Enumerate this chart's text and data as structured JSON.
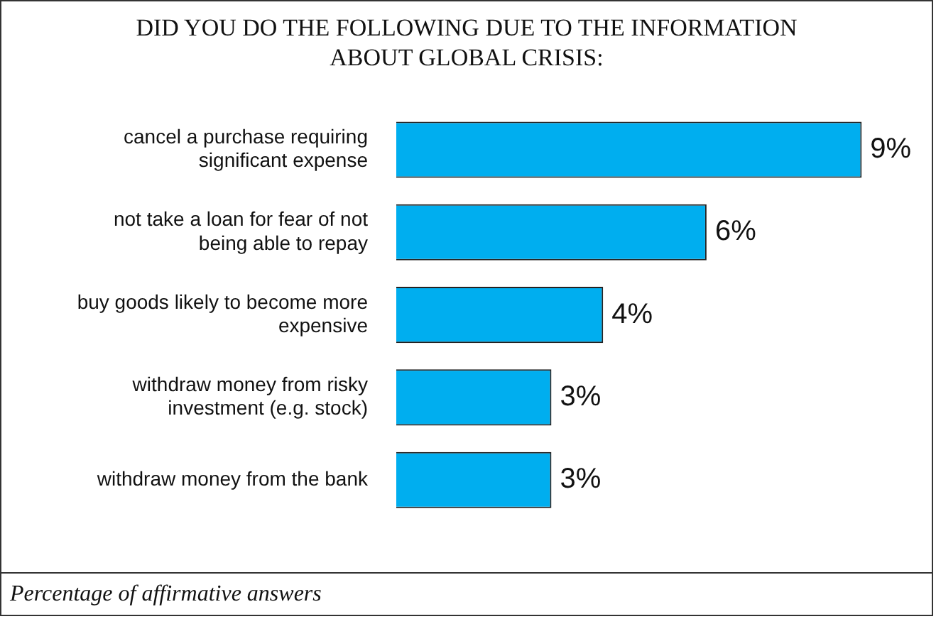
{
  "chart_data": {
    "type": "bar",
    "orientation": "horizontal",
    "title": "DID YOU DO THE FOLLOWING DUE TO THE INFORMATION ABOUT GLOBAL CRISIS:",
    "categories": [
      "cancel a purchase requiring significant expense",
      "not take a loan for fear of not being able to repay",
      "buy goods likely to become more expensive",
      "withdraw money from risky investment (e.g. stock)",
      "withdraw money from the bank"
    ],
    "values": [
      9,
      6,
      4,
      3,
      3
    ],
    "value_labels": [
      "9%",
      "6%",
      "4%",
      "3%",
      "3%"
    ],
    "color": "#00aeef",
    "legend": false,
    "annotations": [
      "Percentage of affirmative answers"
    ]
  }
}
